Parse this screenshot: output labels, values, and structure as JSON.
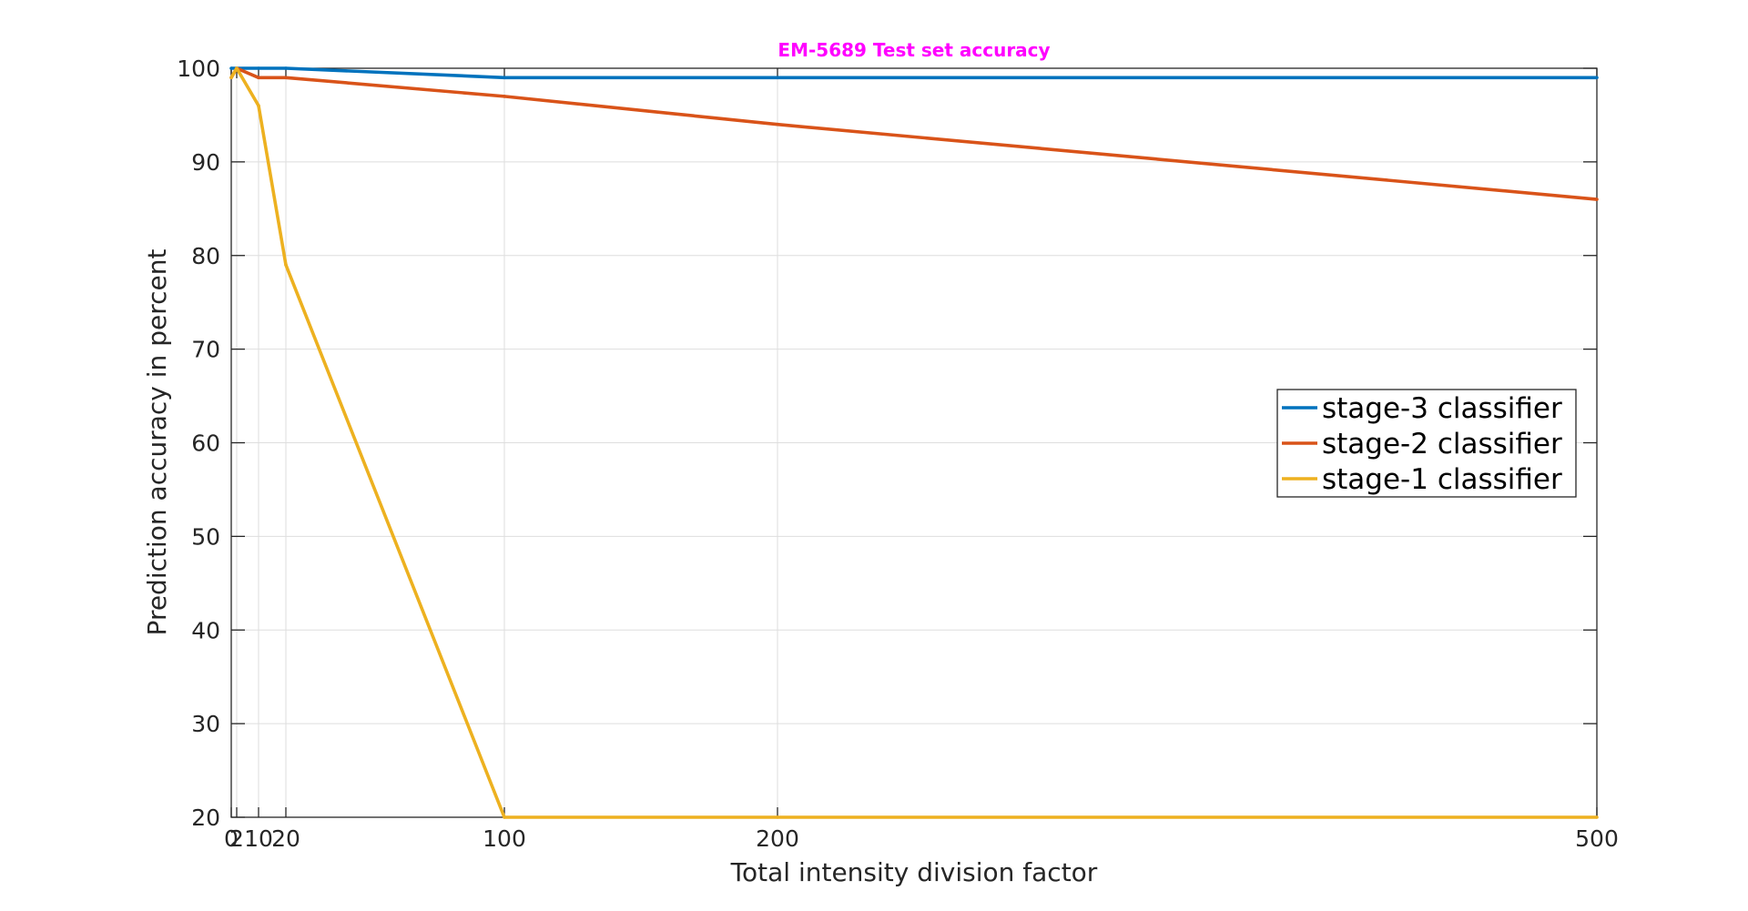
{
  "chart_data": {
    "type": "line",
    "title": "EM-5689 Test set accuracy",
    "title_color": "#ff00ff",
    "xlabel": "Total intensity division factor",
    "ylabel": "Prediction accuracy in percent",
    "xlim": [
      0,
      500
    ],
    "ylim": [
      20,
      100
    ],
    "x_ticks": [
      0,
      2,
      10,
      20,
      100,
      200,
      500
    ],
    "x_tick_labels": [
      "0",
      "2",
      "10",
      "20",
      "100",
      "200",
      "500"
    ],
    "y_ticks": [
      20,
      30,
      40,
      50,
      60,
      70,
      80,
      90,
      100
    ],
    "y_tick_labels": [
      "20",
      "30",
      "40",
      "50",
      "60",
      "70",
      "80",
      "90",
      "100"
    ],
    "grid": true,
    "legend_position": "right",
    "x": [
      0,
      2,
      10,
      20,
      100,
      200,
      500
    ],
    "series": [
      {
        "name": "stage-3 classifier",
        "color": "#0072bd",
        "values": [
          100,
          100,
          100,
          100,
          99,
          99,
          99
        ]
      },
      {
        "name": "stage-2 classifier",
        "color": "#d95319",
        "values": [
          99,
          100,
          99,
          99,
          97,
          94,
          86
        ]
      },
      {
        "name": "stage-1 classifier",
        "color": "#edb120",
        "values": [
          99,
          100,
          96,
          79,
          20,
          20,
          20
        ]
      }
    ]
  }
}
